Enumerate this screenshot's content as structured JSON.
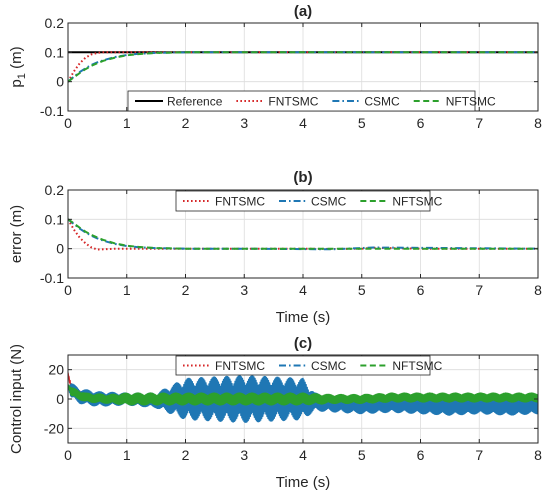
{
  "chart_data": [
    {
      "panel": "a",
      "type": "line",
      "title": "(a)",
      "xlabel": "",
      "ylabel": "p",
      "ylabel_sub": "1",
      "ylabel_unit": " (m)",
      "xlim": [
        0,
        8
      ],
      "ylim": [
        -0.1,
        0.2
      ],
      "xticks": [
        0,
        1,
        2,
        3,
        4,
        5,
        6,
        7,
        8
      ],
      "yticks": [
        -0.1,
        0,
        0.1,
        0.2
      ],
      "ytick_labels": [
        "-0.1",
        "0",
        "0.1",
        "0.2"
      ],
      "grid": true,
      "legend": {
        "placement": "bottom-right",
        "orientation": "horizontal"
      },
      "series": [
        {
          "name": "Reference",
          "color": "#000000",
          "dash": "solid",
          "x": [
            0,
            8
          ],
          "y": [
            0.1,
            0.1
          ]
        },
        {
          "name": "FNTSMC",
          "color": "#d62728",
          "dash": "dotted",
          "x": [
            0,
            0.1,
            0.2,
            0.3,
            0.4,
            0.5,
            0.6,
            0.8,
            1,
            2,
            4,
            4.5,
            5,
            5.2,
            6,
            8
          ],
          "y": [
            0,
            0.035,
            0.063,
            0.082,
            0.093,
            0.098,
            0.1,
            0.1,
            0.1,
            0.1,
            0.1,
            0.1,
            0.1,
            0.101,
            0.1,
            0.1
          ]
        },
        {
          "name": "CSMC",
          "color": "#1f77b4",
          "dash": "dashdot",
          "x": [
            0,
            0.1,
            0.2,
            0.3,
            0.4,
            0.5,
            0.6,
            0.8,
            1,
            1.2,
            1.5,
            2,
            2.5,
            3,
            8
          ],
          "y": [
            0,
            0.017,
            0.033,
            0.046,
            0.057,
            0.066,
            0.073,
            0.084,
            0.091,
            0.095,
            0.098,
            0.1,
            0.1,
            0.1,
            0.1
          ]
        },
        {
          "name": "NFTSMC",
          "color": "#2ca02c",
          "dash": "dashed",
          "x": [
            0,
            0.1,
            0.2,
            0.3,
            0.4,
            0.5,
            0.6,
            0.8,
            1,
            1.2,
            1.5,
            2,
            2.5,
            3,
            8
          ],
          "y": [
            0,
            0.015,
            0.03,
            0.043,
            0.054,
            0.063,
            0.071,
            0.082,
            0.09,
            0.094,
            0.098,
            0.1,
            0.1,
            0.1,
            0.1
          ]
        }
      ]
    },
    {
      "panel": "b",
      "type": "line",
      "title": "(b)",
      "xlabel": "Time (s)",
      "ylabel": "error (m)",
      "xlim": [
        0,
        8
      ],
      "ylim": [
        -0.1,
        0.2
      ],
      "xticks": [
        0,
        1,
        2,
        3,
        4,
        5,
        6,
        7,
        8
      ],
      "yticks": [
        -0.1,
        0,
        0.1,
        0.2
      ],
      "ytick_labels": [
        "-0.1",
        "0",
        "0.1",
        "0.2"
      ],
      "grid": true,
      "legend": {
        "placement": "top-right",
        "orientation": "horizontal"
      },
      "series": [
        {
          "name": "FNTSMC",
          "color": "#d62728",
          "dash": "dotted",
          "x": [
            0,
            0.1,
            0.2,
            0.3,
            0.4,
            0.5,
            0.6,
            0.8,
            1,
            2,
            4,
            4.5,
            5,
            5.2,
            6,
            8
          ],
          "y": [
            0.1,
            0.065,
            0.037,
            0.018,
            0.004,
            -0.003,
            -0.002,
            0,
            0,
            0,
            0,
            -0.001,
            0,
            0.003,
            0,
            0
          ]
        },
        {
          "name": "CSMC",
          "color": "#1f77b4",
          "dash": "dashdot",
          "x": [
            0,
            0.1,
            0.2,
            0.3,
            0.4,
            0.5,
            0.6,
            0.8,
            1,
            1.2,
            1.5,
            2,
            2.5,
            3,
            4.5,
            5.2,
            8
          ],
          "y": [
            0.1,
            0.084,
            0.068,
            0.055,
            0.044,
            0.035,
            0.027,
            0.016,
            0.009,
            0.005,
            0.002,
            0,
            0,
            0,
            -0.002,
            0.004,
            0
          ]
        },
        {
          "name": "NFTSMC",
          "color": "#2ca02c",
          "dash": "dashed",
          "x": [
            0,
            0.1,
            0.2,
            0.3,
            0.4,
            0.5,
            0.6,
            0.8,
            1,
            1.2,
            1.5,
            2,
            2.5,
            3,
            8
          ],
          "y": [
            0.1,
            0.086,
            0.071,
            0.058,
            0.047,
            0.038,
            0.03,
            0.018,
            0.01,
            0.006,
            0.002,
            0,
            0,
            0,
            0
          ]
        }
      ]
    },
    {
      "panel": "c",
      "type": "line",
      "title": "(c)",
      "xlabel": "Time (s)",
      "ylabel": "Control input (N)",
      "xlim": [
        0,
        8
      ],
      "ylim": [
        -30,
        30
      ],
      "xticks": [
        0,
        1,
        2,
        3,
        4,
        5,
        6,
        7,
        8
      ],
      "yticks": [
        -20,
        0,
        20
      ],
      "ytick_labels": [
        "-20",
        "0",
        "20"
      ],
      "grid": true,
      "legend": {
        "placement": "top-right",
        "orientation": "horizontal"
      },
      "series": [
        {
          "name": "FNTSMC",
          "color": "#d62728",
          "dash": "dotted",
          "x": [
            0,
            0.05,
            0.15,
            0.3,
            0.5,
            1,
            2,
            3,
            4,
            4.5,
            5,
            5.5,
            6,
            7,
            8
          ],
          "y": [
            18,
            8,
            4,
            2,
            1,
            0,
            0,
            0,
            0,
            -1,
            -2,
            -1,
            -1,
            -2,
            -1
          ],
          "chatter": [
            0,
            3,
            3,
            3,
            3,
            3,
            3,
            3,
            3,
            3,
            2,
            2,
            2,
            2,
            2
          ]
        },
        {
          "name": "CSMC",
          "color": "#1f77b4",
          "dash": "dashdot",
          "x": [
            0,
            0.05,
            0.2,
            0.5,
            1,
            1.5,
            2,
            2.5,
            3,
            3.5,
            4,
            4.2,
            5,
            5.5,
            6,
            6.5,
            7,
            7.5,
            8
          ],
          "y": [
            8,
            6,
            2,
            0,
            0,
            -1,
            0,
            0,
            0,
            0,
            0,
            -2,
            -5,
            -4,
            -5,
            -6,
            -5,
            -6,
            -5
          ],
          "chatter": [
            0,
            5,
            5,
            5,
            4,
            5,
            14,
            15,
            16,
            15,
            14,
            6,
            5,
            5,
            5,
            5,
            5,
            5,
            5
          ]
        },
        {
          "name": "NFTSMC",
          "color": "#2ca02c",
          "dash": "dashed",
          "x": [
            0,
            0.05,
            0.3,
            0.7,
            1,
            2,
            3,
            4,
            4.5,
            5,
            5.5,
            6,
            7,
            8
          ],
          "y": [
            10,
            5,
            1,
            0,
            0,
            0,
            0,
            0,
            0,
            0,
            1,
            1,
            1,
            1
          ],
          "chatter": [
            0,
            3,
            3,
            3,
            4,
            4,
            4,
            4,
            3,
            3,
            3,
            3,
            3,
            3
          ]
        }
      ]
    }
  ]
}
